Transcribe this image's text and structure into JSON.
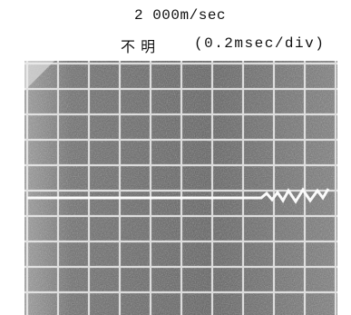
{
  "header": {
    "speed": "2 000m/sec",
    "label": "不 明",
    "scale": "(0.2msec/div)"
  }
}
